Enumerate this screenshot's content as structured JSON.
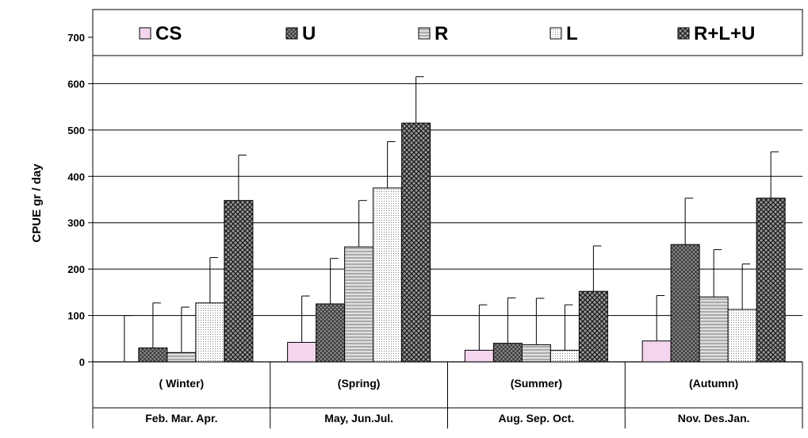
{
  "chart_data": {
    "type": "bar",
    "title": "",
    "xlabel": "",
    "ylabel": "CPUE gr / day",
    "ylim": [
      0,
      700
    ],
    "yticks": [
      0,
      100,
      200,
      300,
      400,
      500,
      600,
      700
    ],
    "grid": true,
    "legend_position": "top",
    "categories": [
      {
        "season": "( Winter)",
        "months": "Feb. Mar. Apr."
      },
      {
        "season": "(Spring)",
        "months": "May, Jun.Jul."
      },
      {
        "season": "(Summer)",
        "months": "Aug. Sep. Oct."
      },
      {
        "season": "(Autumn)",
        "months": "Nov. Des.Jan."
      }
    ],
    "series": [
      {
        "name": "CS",
        "pattern": "plain-pink",
        "color": "#f3d6ee",
        "values": [
          0,
          42,
          25,
          45
        ],
        "error": [
          100,
          100,
          98,
          98
        ]
      },
      {
        "name": "U",
        "pattern": "crosshatch-dark",
        "color": "#7a7a7a",
        "values": [
          30,
          125,
          40,
          253
        ],
        "error": [
          97,
          98,
          98,
          100
        ]
      },
      {
        "name": "R",
        "pattern": "horizontal-lines",
        "color": "#cfcfcf",
        "values": [
          20,
          248,
          37,
          140
        ],
        "error": [
          98,
          100,
          100,
          102
        ]
      },
      {
        "name": "L",
        "pattern": "fine-dots",
        "color": "#ececec",
        "values": [
          127,
          375,
          25,
          113
        ],
        "error": [
          98,
          100,
          98,
          98
        ]
      },
      {
        "name": "R+L+U",
        "pattern": "dense-crosshatch",
        "color": "#6a6a6a",
        "values": [
          348,
          515,
          152,
          353
        ],
        "error": [
          98,
          100,
          98,
          100
        ]
      }
    ]
  }
}
